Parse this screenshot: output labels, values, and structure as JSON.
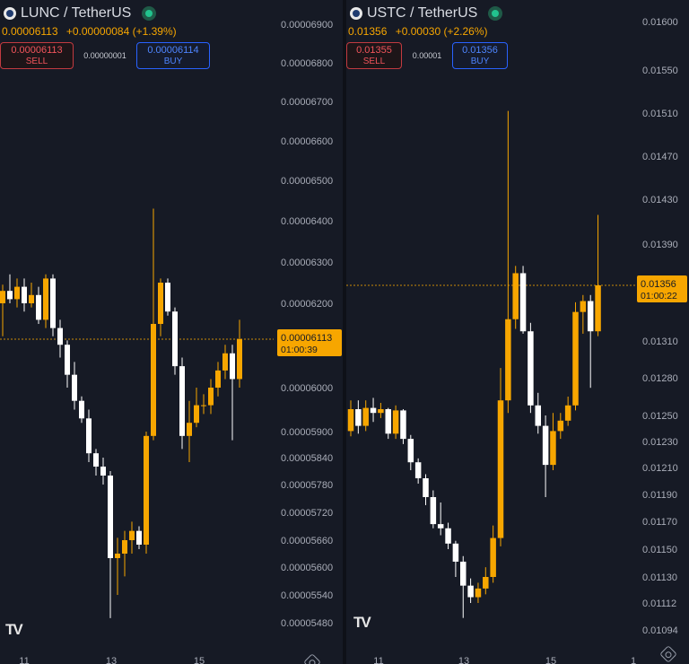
{
  "colors": {
    "background": "#161a25",
    "up": "#f7a600",
    "down": "#ffffff",
    "axis_text": "#a9adb8",
    "price_line": "#f7a600",
    "sell": "#f2545b",
    "buy": "#4e85ff",
    "live_dot": "#22c38e"
  },
  "icons": {
    "coin": "coin-icon",
    "live_status": "live-dot-icon",
    "logo": "tradingview-logo-icon",
    "settings": "gear-icon"
  },
  "left": {
    "symbol": "LUNC / TetherUS",
    "last_price": "0.00006113",
    "change": "+0.00000084 (+1.39%)",
    "sell": {
      "price": "0.00006113",
      "label": "SELL"
    },
    "spread": "0.00000001",
    "buy": {
      "price": "0.00006114",
      "label": "BUY"
    },
    "price_tag": {
      "price": "0.00006113",
      "countdown": "01:00:39"
    },
    "logo_text": "TV"
  },
  "right": {
    "symbol": "USTC / TetherUS",
    "last_price": "0.01356",
    "change": "+0.00030 (+2.26%)",
    "sell": {
      "price": "0.01355",
      "label": "SELL"
    },
    "spread": "0.00001",
    "buy": {
      "price": "0.01356",
      "label": "BUY"
    },
    "price_tag": {
      "price": "0.01356",
      "countdown": "01:00:22"
    },
    "logo_text": "TV"
  },
  "chart_data": [
    {
      "type": "candlestick",
      "title": "LUNC / TetherUS",
      "x_ticks": [
        "11",
        "13",
        "15"
      ],
      "y_ticks": [
        "0.00006900",
        "0.00006800",
        "0.00006700",
        "0.00006600",
        "0.00006500",
        "0.00006400",
        "0.00006300",
        "0.00006200",
        "0.00006113",
        "0.00006000",
        "0.00005900",
        "0.00005840",
        "0.00005780",
        "0.00005720",
        "0.00005660",
        "0.00005600",
        "0.00005540",
        "0.00005480"
      ],
      "y_tick_values": [
        6.9e-05,
        6.8e-05,
        6.7e-05,
        6.6e-05,
        6.5e-05,
        6.4e-05,
        6.3e-05,
        6.2e-05,
        6.113e-05,
        6e-05,
        5.9e-05,
        5.84e-05,
        5.78e-05,
        5.72e-05,
        5.66e-05,
        5.6e-05,
        5.54e-05,
        5.48e-05
      ],
      "last_price": 6.113e-05,
      "candles": [
        [
          6.2e-05,
          6.245e-05,
          6.12e-05,
          6.23e-05
        ],
        [
          6.23e-05,
          6.27e-05,
          6.2e-05,
          6.21e-05
        ],
        [
          6.21e-05,
          6.26e-05,
          6.19e-05,
          6.24e-05
        ],
        [
          6.24e-05,
          6.26e-05,
          6.18e-05,
          6.2e-05
        ],
        [
          6.2e-05,
          6.25e-05,
          6.19e-05,
          6.22e-05
        ],
        [
          6.22e-05,
          6.24e-05,
          6.15e-05,
          6.16e-05
        ],
        [
          6.16e-05,
          6.27e-05,
          6.14e-05,
          6.26e-05
        ],
        [
          6.26e-05,
          6.27e-05,
          6.12e-05,
          6.14e-05
        ],
        [
          6.14e-05,
          6.16e-05,
          6.07e-05,
          6.1e-05
        ],
        [
          6.1e-05,
          6.11e-05,
          6e-05,
          6.03e-05
        ],
        [
          6.03e-05,
          6.06e-05,
          5.95e-05,
          5.97e-05
        ],
        [
          5.97e-05,
          5.98e-05,
          5.92e-05,
          5.93e-05
        ],
        [
          5.93e-05,
          5.95e-05,
          5.83e-05,
          5.85e-05
        ],
        [
          5.85e-05,
          5.86e-05,
          5.8e-05,
          5.82e-05
        ],
        [
          5.82e-05,
          5.84e-05,
          5.78e-05,
          5.8e-05
        ],
        [
          5.8e-05,
          5.81e-05,
          5.49e-05,
          5.62e-05
        ],
        [
          5.62e-05,
          5.665e-05,
          5.54e-05,
          5.63e-05
        ],
        [
          5.63e-05,
          5.68e-05,
          5.58e-05,
          5.66e-05
        ],
        [
          5.66e-05,
          5.7e-05,
          5.63e-05,
          5.68e-05
        ],
        [
          5.68e-05,
          5.69e-05,
          5.64e-05,
          5.65e-05
        ],
        [
          5.65e-05,
          5.9e-05,
          5.63e-05,
          5.89e-05
        ],
        [
          5.89e-05,
          6.43e-05,
          5.88e-05,
          6.15e-05
        ],
        [
          6.15e-05,
          6.26e-05,
          6.12e-05,
          6.25e-05
        ],
        [
          6.25e-05,
          6.26e-05,
          6.17e-05,
          6.18e-05
        ],
        [
          6.18e-05,
          6.19e-05,
          6.03e-05,
          6.05e-05
        ],
        [
          6.05e-05,
          6.07e-05,
          5.86e-05,
          5.89e-05
        ],
        [
          5.89e-05,
          5.97e-05,
          5.83e-05,
          5.92e-05
        ],
        [
          5.92e-05,
          6e-05,
          5.91e-05,
          5.96e-05
        ],
        [
          5.96e-05,
          5.985e-05,
          5.94e-05,
          5.96e-05
        ],
        [
          5.96e-05,
          6.02e-05,
          5.94e-05,
          6e-05
        ],
        [
          6e-05,
          6.06e-05,
          5.98e-05,
          6.04e-05
        ],
        [
          6.04e-05,
          6.1e-05,
          6.02e-05,
          6.08e-05
        ],
        [
          6.08e-05,
          6.1e-05,
          5.88e-05,
          6.02e-05
        ],
        [
          6.02e-05,
          6.16e-05,
          6e-05,
          6.113e-05
        ]
      ]
    },
    {
      "type": "candlestick",
      "title": "USTC / TetherUS",
      "x_ticks": [
        "11",
        "13",
        "15",
        "1"
      ],
      "y_ticks": [
        "0.01600",
        "0.01550",
        "0.01510",
        "0.01470",
        "0.01430",
        "0.01390",
        "0.01356",
        "0.01310",
        "0.01280",
        "0.01250",
        "0.01230",
        "0.01210",
        "0.01190",
        "0.01170",
        "0.01150",
        "0.01130",
        "0.01112",
        "0.01094"
      ],
      "y_tick_values": [
        0.016,
        0.0155,
        0.0151,
        0.0147,
        0.0143,
        0.0139,
        0.01356,
        0.0131,
        0.0128,
        0.0125,
        0.0123,
        0.0121,
        0.0119,
        0.0117,
        0.0115,
        0.0113,
        0.01112,
        0.01094
      ],
      "last_price": 0.01356,
      "candles": [
        [
          0.01238,
          0.01262,
          0.01234,
          0.01255
        ],
        [
          0.01255,
          0.01262,
          0.01236,
          0.01242
        ],
        [
          0.01242,
          0.01262,
          0.01238,
          0.01256
        ],
        [
          0.01256,
          0.01264,
          0.01245,
          0.01252
        ],
        [
          0.01252,
          0.0126,
          0.01248,
          0.01255
        ],
        [
          0.01255,
          0.01256,
          0.01232,
          0.01236
        ],
        [
          0.01236,
          0.01258,
          0.01232,
          0.01254
        ],
        [
          0.01254,
          0.01255,
          0.01228,
          0.01232
        ],
        [
          0.01232,
          0.01235,
          0.01208,
          0.01214
        ],
        [
          0.01214,
          0.01217,
          0.01198,
          0.01202
        ],
        [
          0.01202,
          0.01205,
          0.01182,
          0.01188
        ],
        [
          0.01188,
          0.01193,
          0.01165,
          0.01168
        ],
        [
          0.01168,
          0.01184,
          0.0116,
          0.01165
        ],
        [
          0.01165,
          0.01169,
          0.0115,
          0.01154
        ],
        [
          0.01154,
          0.01156,
          0.0113,
          0.01141
        ],
        [
          0.01141,
          0.01145,
          0.01102,
          0.01124
        ],
        [
          0.01124,
          0.01129,
          0.01112,
          0.01116
        ],
        [
          0.01116,
          0.01126,
          0.01112,
          0.01122
        ],
        [
          0.01122,
          0.01137,
          0.01118,
          0.0113
        ],
        [
          0.0113,
          0.01167,
          0.01126,
          0.01158
        ],
        [
          0.01158,
          0.01288,
          0.01152,
          0.01262
        ],
        [
          0.01262,
          0.01512,
          0.01252,
          0.01328
        ],
        [
          0.01328,
          0.01372,
          0.0132,
          0.01366
        ],
        [
          0.01366,
          0.01372,
          0.01316,
          0.01318
        ],
        [
          0.01318,
          0.01325,
          0.01252,
          0.01258
        ],
        [
          0.01258,
          0.01268,
          0.01236,
          0.01242
        ],
        [
          0.01242,
          0.0125,
          0.01188,
          0.01212
        ],
        [
          0.01212,
          0.01252,
          0.01208,
          0.01238
        ],
        [
          0.01238,
          0.01252,
          0.01232,
          0.01246
        ],
        [
          0.01246,
          0.01265,
          0.01242,
          0.01258
        ],
        [
          0.01258,
          0.01342,
          0.01254,
          0.01334
        ],
        [
          0.01334,
          0.01348,
          0.01316,
          0.01343
        ],
        [
          0.01343,
          0.01348,
          0.01272,
          0.01318
        ],
        [
          0.01318,
          0.01416,
          0.01314,
          0.01356
        ]
      ]
    }
  ]
}
